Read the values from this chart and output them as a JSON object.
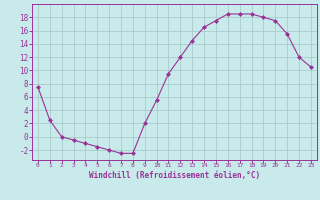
{
  "hours": [
    0,
    1,
    2,
    3,
    4,
    5,
    6,
    7,
    8,
    9,
    10,
    11,
    12,
    13,
    14,
    15,
    16,
    17,
    18,
    19,
    20,
    21,
    22,
    23
  ],
  "windchill": [
    7.5,
    2.5,
    0.0,
    -0.5,
    -1.0,
    -1.5,
    -2.0,
    -2.5,
    -2.5,
    2.0,
    5.5,
    9.5,
    12.0,
    14.5,
    16.5,
    17.5,
    18.5,
    18.5,
    18.5,
    18.0,
    17.5,
    15.5,
    12.0,
    10.5
  ],
  "line_color": "#993399",
  "marker": "D",
  "marker_size": 2.0,
  "bg_color": "#c8eaea",
  "grid_color": "#aacccc",
  "xlabel": "Windchill (Refroidissement éolien,°C)",
  "ylim": [
    -3.5,
    20
  ],
  "xlim": [
    -0.5,
    23.5
  ],
  "yticks": [
    -2,
    0,
    2,
    4,
    6,
    8,
    10,
    12,
    14,
    16,
    18
  ],
  "xticks": [
    0,
    1,
    2,
    3,
    4,
    5,
    6,
    7,
    8,
    9,
    10,
    11,
    12,
    13,
    14,
    15,
    16,
    17,
    18,
    19,
    20,
    21,
    22,
    23
  ],
  "tick_color": "#993399",
  "label_color": "#993399",
  "spine_color": "#993399"
}
